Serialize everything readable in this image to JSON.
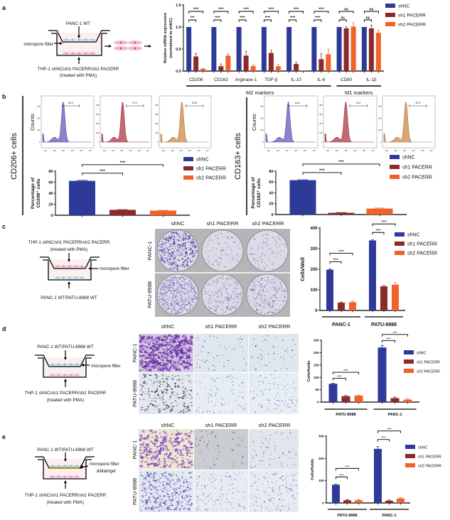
{
  "colors": {
    "shNC": "#2e3a98",
    "sh1 PACERR": "#8c2a2a",
    "sh2 PACERR": "#f0622a"
  },
  "panels": {
    "a": {
      "letter": "a",
      "schematic": {
        "top_label": "PANC-1 WT",
        "filter_label": "micropore filter",
        "bottom_label_1": "THP-1 shNC/sh1 PACERR/sh2 PACERR",
        "bottom_label_2": "(treated with PMA)"
      }
    },
    "b": {
      "letter": "b",
      "left": {
        "row_label": "CD206+ cells",
        "counts_label": "Counts",
        "flow": [
          {
            "gate_value": "62.2",
            "y_ticks": [
              "0",
              "100",
              "200",
              "300"
            ]
          },
          {
            "gate_value": "9.71",
            "y_ticks": [
              "0",
              "100",
              "200",
              "300",
              "400"
            ]
          },
          {
            "gate_value": "8.09",
            "y_ticks": [
              "0",
              "100",
              "200",
              "300",
              "400"
            ]
          }
        ]
      },
      "right": {
        "row_label": "CD163+ cells",
        "counts_label": "Counts",
        "flow": [
          {
            "gate_value": "64.6",
            "y_ticks": [
              "0",
              "100",
              "200",
              "300"
            ]
          },
          {
            "gate_value": "3.47",
            "y_ticks": [
              "0",
              "100",
              "200",
              "300",
              "400"
            ]
          },
          {
            "gate_value": "10.3",
            "y_ticks": [
              "0",
              "100",
              "200",
              "300"
            ]
          }
        ]
      },
      "flow_x_ticks": [
        "10²",
        "10³",
        "10⁴",
        "10⁵",
        "10⁶",
        "10⁷"
      ]
    },
    "c": {
      "letter": "c",
      "schematic": {
        "top_label_1": "THP-1 shNC/sh1 PACERR/sh2 PACERR",
        "top_label_2": "(treated with PMA)",
        "filter_label": "micropore filter",
        "bottom_label": "PANC-1 WT/PATU-8988 WT"
      },
      "columns": [
        "shNC",
        "sh1 PACERR",
        "sh2 PACERR"
      ],
      "rows": [
        "PANC-1",
        "PATU-8988"
      ]
    },
    "d": {
      "letter": "d",
      "schematic": {
        "top_label": "PANC-1 WT/PATU-8988 WT",
        "filter_label": "micropore filter",
        "bottom_label_1": "THP-1 shNC/sh1 PACERR/sh2 PACERR",
        "bottom_label_2": "(treated with PMA)"
      },
      "columns": [
        "shNC",
        "sh1 PACERR",
        "sh2 PACERR"
      ],
      "rows": [
        "PANC-1",
        "PATU-8988"
      ]
    },
    "e": {
      "letter": "e",
      "schematic": {
        "top_label": "PANC-1 WT/PATU-8988 WT",
        "filter_label_1": "micropore filter",
        "filter_label_2": "&Matrigel",
        "bottom_label_1": "THP-1 shNC/sh1 PACERR/sh2 PACERR",
        "bottom_label_2": "(treated with PMA)"
      },
      "columns": [
        "shNC",
        "sh1 PACERR",
        "sh2 PACERR"
      ],
      "rows": [
        "PANC-1",
        "PATU-8988"
      ]
    }
  },
  "chart_data": [
    {
      "type": "bar",
      "panel": "a",
      "ylabel": [
        "Relative mRNA expression",
        "(normalized to shNC)"
      ],
      "ylim": [
        0,
        1.5
      ],
      "yticks": [
        0,
        0.5,
        1.0,
        1.5
      ],
      "ytick_labels": [
        "0.0",
        "0.5",
        "1.0",
        "1.5"
      ],
      "categories": [
        "CD206",
        "CD163",
        "Arginase-1",
        "TGF-β",
        "IL-10",
        "IL-6",
        "CD80",
        "IL-1β"
      ],
      "series": [
        {
          "name": "shNC",
          "values": [
            1,
            1,
            1,
            1,
            1,
            1,
            1,
            1
          ],
          "errors": [
            0,
            0,
            0,
            0,
            0,
            0,
            0,
            0
          ]
        },
        {
          "name": "sh1 PACERR",
          "values": [
            0.33,
            0.11,
            0.35,
            0.41,
            0.16,
            0.27,
            0.97,
            0.97
          ],
          "errors": [
            0.07,
            0.05,
            0.1,
            0.06,
            0.04,
            0.12,
            0.04,
            0.07
          ]
        },
        {
          "name": "sh2 PACERR",
          "values": [
            0.05,
            0.35,
            0.11,
            0.11,
            0.01,
            0.38,
            1.01,
            0.87
          ],
          "errors": [
            0.01,
            0.04,
            0.03,
            0.04,
            0.0,
            0.12,
            0.09,
            0.06
          ]
        }
      ],
      "significance": [
        [
          "***",
          "****"
        ],
        [
          "****",
          "****"
        ],
        [
          "****",
          "****"
        ],
        [
          "****",
          "****"
        ],
        [
          "****",
          "****"
        ],
        [
          "****",
          "****"
        ],
        [
          "ns",
          "ns"
        ],
        [
          "ns",
          "ns"
        ]
      ],
      "group_labels": [
        {
          "label": "M2 markers",
          "from": 0,
          "to": 5
        },
        {
          "label": "M1 markers",
          "from": 6,
          "to": 7
        }
      ],
      "legend": "right"
    },
    {
      "type": "bar",
      "panel": "b-left",
      "ylabel": [
        "Percentage of",
        "CD206⁺ cells"
      ],
      "ylim": [
        0,
        80
      ],
      "yticks": [
        0,
        20,
        40,
        60,
        80
      ],
      "ytick_labels": [
        "0",
        "20",
        "40",
        "60",
        "80"
      ],
      "categories": [
        ""
      ],
      "series": [
        {
          "name": "shNC",
          "values": [
            62.5
          ],
          "errors": [
            1
          ]
        },
        {
          "name": "sh1 PACERR",
          "values": [
            9.8
          ],
          "errors": [
            0.5
          ]
        },
        {
          "name": "sh2 PACERR",
          "values": [
            8.5
          ],
          "errors": [
            0.5
          ]
        }
      ],
      "significance": [
        [
          "****",
          "****"
        ]
      ],
      "legend": "top-right"
    },
    {
      "type": "bar",
      "panel": "b-right",
      "ylabel": [
        "Percentage of",
        "CD163⁺ cells"
      ],
      "ylim": [
        0,
        80
      ],
      "yticks": [
        0,
        20,
        40,
        60,
        80
      ],
      "ytick_labels": [
        "0",
        "20",
        "40",
        "60",
        "80"
      ],
      "categories": [
        ""
      ],
      "series": [
        {
          "name": "shNC",
          "values": [
            63.5
          ],
          "errors": [
            0.8
          ]
        },
        {
          "name": "sh1 PACERR",
          "values": [
            3.2
          ],
          "errors": [
            0.5
          ]
        },
        {
          "name": "sh2 PACERR",
          "values": [
            11
          ],
          "errors": [
            1
          ]
        }
      ],
      "significance": [
        [
          "****",
          "****"
        ]
      ],
      "legend": "top-right"
    },
    {
      "type": "bar",
      "panel": "c",
      "ylabel": [
        "Cells/Well"
      ],
      "ylim": [
        0,
        400
      ],
      "yticks": [
        0,
        100,
        200,
        300,
        400
      ],
      "ytick_labels": [
        "0",
        "100",
        "200",
        "300",
        "400"
      ],
      "categories": [
        "PANC-1",
        "PATU-8988"
      ],
      "series": [
        {
          "name": "shNC",
          "values": [
            198,
            340
          ],
          "errors": [
            4,
            4
          ]
        },
        {
          "name": "sh1 PACERR",
          "values": [
            38,
            117
          ],
          "errors": [
            3,
            4
          ]
        },
        {
          "name": "sh2 PACERR",
          "values": [
            40,
            125
          ],
          "errors": [
            5,
            10
          ]
        }
      ],
      "significance": [
        [
          "****",
          "****"
        ],
        [
          "****",
          "****"
        ]
      ],
      "legend": "top-right"
    },
    {
      "type": "bar",
      "panel": "d",
      "ylabel": [
        "Cells/fields"
      ],
      "ylim": [
        0,
        250
      ],
      "yticks": [
        0,
        50,
        100,
        150,
        200,
        250
      ],
      "ytick_labels": [
        "0",
        "50",
        "100",
        "150",
        "200",
        "250"
      ],
      "categories": [
        "PATU-8988",
        "PANC-1"
      ],
      "series": [
        {
          "name": "shNC",
          "values": [
            74,
            221
          ],
          "errors": [
            2,
            8
          ]
        },
        {
          "name": "sh1 PACERR",
          "values": [
            24,
            16
          ],
          "errors": [
            3,
            4
          ]
        },
        {
          "name": "sh2 PACERR",
          "values": [
            26,
            10
          ],
          "errors": [
            2,
            4
          ]
        }
      ],
      "significance": [
        [
          "****",
          "****"
        ],
        [
          "****",
          "****"
        ]
      ],
      "legend": "right"
    },
    {
      "type": "bar",
      "panel": "e",
      "ylabel": [
        "Cells/fields"
      ],
      "ylim": [
        0,
        300
      ],
      "yticks": [
        0,
        100,
        200,
        300
      ],
      "ytick_labels": [
        "0",
        "100",
        "200",
        "300"
      ],
      "categories": [
        "PATU-8988",
        "PANC-1"
      ],
      "series": [
        {
          "name": "shNC",
          "values": [
            82,
            243
          ],
          "errors": [
            3,
            10
          ]
        },
        {
          "name": "sh1 PACERR",
          "values": [
            12,
            10
          ],
          "errors": [
            3,
            3
          ]
        },
        {
          "name": "sh2 PACERR",
          "values": [
            12,
            20
          ],
          "errors": [
            3,
            3
          ]
        }
      ],
      "significance": [
        [
          "****",
          "****"
        ],
        [
          "****",
          "****"
        ]
      ],
      "legend": "right"
    }
  ]
}
